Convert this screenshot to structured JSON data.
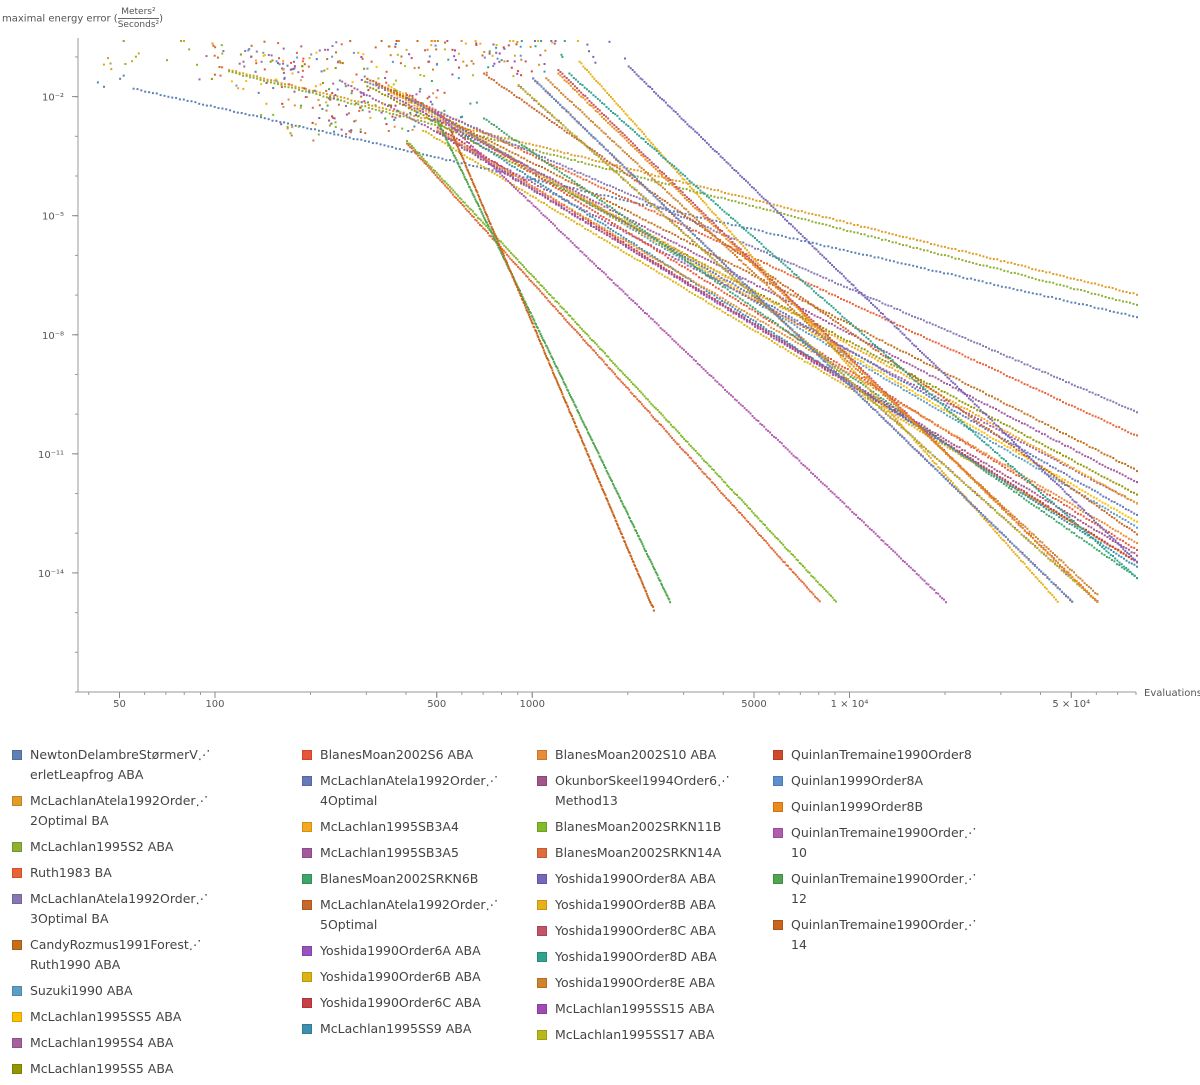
{
  "chart_data": {
    "type": "scatter",
    "ylabel": {
      "prefix": "maximal energy error (",
      "num": "Meters²",
      "den": "Seconds²",
      "suffix": ")"
    },
    "xlabel": "Evaluations",
    "xscale": "log",
    "yscale": "log",
    "xlim": [
      37,
      80000
    ],
    "ylim": [
      1e-17,
      0.3
    ],
    "x_ticks": [
      {
        "value": 50,
        "label": "50"
      },
      {
        "value": 100,
        "label": "100"
      },
      {
        "value": 500,
        "label": "500"
      },
      {
        "value": 1000,
        "label": "1000"
      },
      {
        "value": 5000,
        "label": "5000"
      },
      {
        "value": 10000,
        "label": "1 × 10⁴"
      },
      {
        "value": 50000,
        "label": "5 × 10⁴"
      }
    ],
    "y_ticks": [
      {
        "value": 0.01,
        "label": "10⁻²"
      },
      {
        "value": 1e-05,
        "label": "10⁻⁵"
      },
      {
        "value": 1e-08,
        "label": "10⁻⁸"
      },
      {
        "value": 1e-11,
        "label": "10⁻¹¹"
      },
      {
        "value": 1e-14,
        "label": "10⁻¹⁴"
      }
    ],
    "floor": 8e-16,
    "series": [
      {
        "name": "NewtonDelambreStørmerV⋰\nerletLeapfrog ABA",
        "color": "#5e81b5",
        "order": 2,
        "start": [
          55,
          0.017
        ],
        "end": [
          80000,
          3e-08
        ]
      },
      {
        "name": "McLachlanAtela1992Order⋰\n2Optimal BA",
        "color": "#e19c24",
        "order": 2,
        "start": [
          110,
          0.05
        ],
        "end": [
          80000,
          1.1e-07
        ]
      },
      {
        "name": "McLachlan1995S2 ABA",
        "color": "#8fb032",
        "order": 2,
        "start": [
          110,
          0.045
        ],
        "end": [
          80000,
          6e-08
        ]
      },
      {
        "name": "Ruth1983 BA",
        "color": "#eb6235",
        "order": 3,
        "start": [
          300,
          0.03
        ],
        "end": [
          80000,
          3e-11
        ]
      },
      {
        "name": "McLachlanAtela1992Order⋰\n3Optimal BA",
        "color": "#8778b3",
        "order": 3,
        "start": [
          300,
          0.025
        ],
        "end": [
          80000,
          1.2e-10
        ]
      },
      {
        "name": "CandyRozmus1991Forest⋰\nRuth1990 ABA",
        "color": "#c56e1a",
        "order": 4,
        "start": [
          300,
          0.03
        ],
        "end": [
          80000,
          4e-12
        ]
      },
      {
        "name": "Suzuki1990 ABA",
        "color": "#5d9ec7",
        "order": 4,
        "start": [
          350,
          0.02
        ],
        "end": [
          80000,
          1.5e-13
        ]
      },
      {
        "name": "McLachlan1995SS5 ABA",
        "color": "#ffbf00",
        "order": 4,
        "start": [
          350,
          0.02
        ],
        "end": [
          80000,
          2e-13
        ]
      },
      {
        "name": "McLachlan1995S4 ABA",
        "color": "#a5609d",
        "order": 4,
        "start": [
          250,
          0.025
        ],
        "end": [
          80000,
          6e-13
        ]
      },
      {
        "name": "McLachlan1995S5 ABA",
        "color": "#929600",
        "order": 4,
        "start": [
          300,
          0.02
        ],
        "end": [
          80000,
          1e-12
        ]
      },
      {
        "name": "BlanesMoan2002S6 ABA",
        "color": "#e95536",
        "order": 4,
        "start": [
          400,
          0.012
        ],
        "end": [
          80000,
          4e-14
        ]
      },
      {
        "name": "McLachlanAtela1992Order⋰\n4Optimal",
        "color": "#6679b9",
        "order": 4,
        "start": [
          400,
          0.01
        ],
        "end": [
          80000,
          3e-13
        ]
      },
      {
        "name": "McLachlan1995SB3A4",
        "color": "#f4a81d",
        "order": 4,
        "start": [
          350,
          0.015
        ],
        "end": [
          80000,
          6e-13
        ]
      },
      {
        "name": "McLachlan1995SB3A5",
        "color": "#a4599e",
        "order": 4,
        "start": [
          350,
          0.012
        ],
        "end": [
          80000,
          2e-12
        ]
      },
      {
        "name": "BlanesMoan2002SRKN6B",
        "color": "#3fa66a",
        "order": 6,
        "start": [
          700,
          0.003
        ],
        "end": [
          80000,
          8e-15
        ]
      },
      {
        "name": "McLachlanAtela1992Order⋰\n5Optimal",
        "color": "#c9682b",
        "order": 5,
        "start": [
          700,
          0.04
        ],
        "end": [
          80000,
          1e-13
        ]
      },
      {
        "name": "Yoshida1990Order6A ABA",
        "color": "#9b52c1",
        "order": 6,
        "start": [
          500,
          0.0015
        ],
        "end": [
          80000,
          2e-14
        ]
      },
      {
        "name": "Yoshida1990Order6B ABA",
        "color": "#dbb412",
        "order": 6,
        "start": [
          450,
          0.0015
        ],
        "end": [
          80000,
          2e-14
        ]
      },
      {
        "name": "Yoshida1990Order6C ABA",
        "color": "#c84046",
        "order": 6,
        "start": [
          500,
          0.0018
        ],
        "end": [
          80000,
          2e-14
        ]
      },
      {
        "name": "McLachlan1995SS9 ABA",
        "color": "#3d90b0",
        "order": 6,
        "start": [
          600,
          0.0012
        ],
        "end": [
          80000,
          1.5e-14
        ]
      },
      {
        "name": "BlanesMoan2002S10 ABA",
        "color": "#e88c35",
        "order": 6,
        "start": [
          500,
          0.0015
        ],
        "end": [
          80000,
          6e-14
        ]
      },
      {
        "name": "OkunborSkeel1994Order6⋰\nMethod13",
        "color": "#a2558a",
        "order": 6,
        "start": [
          500,
          0.0013
        ],
        "end": [
          80000,
          3e-14
        ]
      },
      {
        "name": "BlanesMoan2002SRKN11B",
        "color": "#82ba2b",
        "order": 6,
        "start": [
          400,
          0.0008
        ],
        "end": [
          9000,
          2e-15
        ]
      },
      {
        "name": "BlanesMoan2002SRKN14A",
        "color": "#e06c3b",
        "order": 6,
        "start": [
          400,
          0.0007
        ],
        "end": [
          8000,
          2e-15
        ]
      },
      {
        "name": "Yoshida1990Order8A ABA",
        "color": "#7866bb",
        "order": 8,
        "start": [
          2000,
          0.06
        ],
        "end": [
          80000,
          2e-14
        ]
      },
      {
        "name": "Yoshida1990Order8B ABA",
        "color": "#e8b11a",
        "order": 8,
        "start": [
          1400,
          0.08
        ],
        "end": [
          45000,
          2e-15
        ]
      },
      {
        "name": "Yoshida1990Order8C ABA",
        "color": "#c35366",
        "order": 8,
        "start": [
          1200,
          0.05
        ],
        "end": [
          60000,
          2e-15
        ]
      },
      {
        "name": "Yoshida1990Order8D ABA",
        "color": "#2fa38f",
        "order": 8,
        "start": [
          1300,
          0.04
        ],
        "end": [
          80000,
          8e-15
        ]
      },
      {
        "name": "Yoshida1990Order8E ABA",
        "color": "#d0822c",
        "order": 8,
        "start": [
          1100,
          0.03
        ],
        "end": [
          60000,
          3e-15
        ]
      },
      {
        "name": "McLachlan1995SS15 ABA",
        "color": "#a04bb5",
        "order": 8,
        "start": [
          900,
          0.02
        ],
        "end": [
          60000,
          2e-15
        ]
      },
      {
        "name": "McLachlan1995SS17 ABA",
        "color": "#b8b81a",
        "order": 8,
        "start": [
          900,
          0.02
        ],
        "end": [
          60000,
          2e-15
        ]
      },
      {
        "name": "QuinlanTremaine1990Order8",
        "color": "#d04a2a",
        "order": 8,
        "start": [
          1000,
          0.03
        ],
        "end": [
          50000,
          2e-15
        ]
      },
      {
        "name": "Quinlan1999Order8A",
        "color": "#5c8fd0",
        "order": 8,
        "start": [
          1000,
          0.03
        ],
        "end": [
          50000,
          2e-15
        ]
      },
      {
        "name": "Quinlan1999Order8B",
        "color": "#ee8a17",
        "order": 8,
        "start": [
          1200,
          0.04
        ],
        "end": [
          60000,
          2e-15
        ]
      },
      {
        "name": "QuinlanTremaine1990Order⋰\n10",
        "color": "#b25cb0",
        "order": 10,
        "start": [
          500,
          0.004
        ],
        "end": [
          20000,
          2e-15
        ]
      },
      {
        "name": "QuinlanTremaine1990Order⋰\n12",
        "color": "#4fa64f",
        "order": 12,
        "start": [
          500,
          0.0025
        ],
        "end": [
          2700,
          2e-15
        ]
      },
      {
        "name": "QuinlanTremaine1990Order⋰\n14",
        "color": "#c8641c",
        "order": 14,
        "start": [
          550,
          0.0015
        ],
        "end": [
          2400,
          1.2e-15
        ]
      }
    ]
  }
}
